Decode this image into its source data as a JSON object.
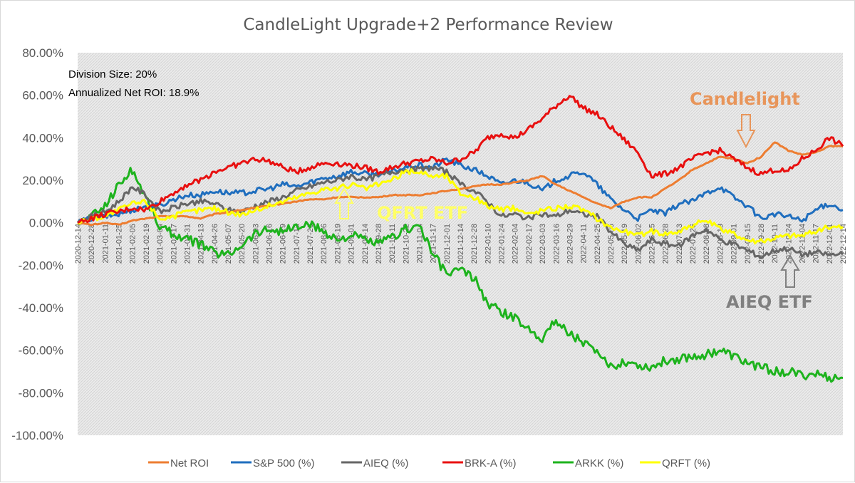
{
  "chart_data": {
    "type": "line",
    "title": "CandleLight Upgrade+2 Performance Review",
    "xlabel": "",
    "ylabel": "",
    "ylim": [
      -100,
      80
    ],
    "y_ticks": [
      "80.00%",
      "60.00%",
      "40.00%",
      "20.00%",
      "0.00%",
      "-20.00%",
      "-40.00%",
      "-60.00%",
      "-80.00%",
      "-100.00%"
    ],
    "x_tick_labels": [
      "2020-12-14",
      "2020-12-28",
      "2021-01-11",
      "2021-01-25",
      "2021-02-05",
      "2021-02-19",
      "2021-03-04",
      "2021-03-17",
      "2021-03-31",
      "2021-04-13",
      "2021-04-26",
      "2021-05-07",
      "2021-05-20",
      "2021-06-03",
      "2021-06-16",
      "2021-06-29",
      "2021-07-13",
      "2021-07-26",
      "2021-08-06",
      "2021-08-19",
      "2021-09-01",
      "2021-09-14",
      "2021-09-28",
      "2021-10-11",
      "2021-10-22",
      "2021-11-04",
      "2021-11-17",
      "2021-12-01",
      "2021-12-14",
      "2021-12-28",
      "2022-01-10",
      "2022-01-24",
      "2022-02-04",
      "2022-02-17",
      "2022-03-03",
      "2022-03-16",
      "2022-03-29",
      "2022-04-11",
      "2022-04-25",
      "2022-05-06",
      "2022-05-19",
      "2022-06-02",
      "2022-06-15",
      "2022-06-28",
      "2022-07-13",
      "2022-07-26",
      "2022-08-08",
      "2022-08-19",
      "2022-09-01",
      "2022-09-15",
      "2022-09-28",
      "2022-10-11",
      "2022-10-24",
      "2022-11-04",
      "2022-11-17",
      "2022-12-01",
      "2022-12-14"
    ],
    "grid": true,
    "legend_position": "bottom",
    "series": [
      {
        "name": "Net ROI",
        "color": "#ED7D31",
        "values": [
          0,
          -1,
          0,
          -1,
          1,
          2,
          3,
          3,
          3,
          2,
          4,
          5,
          6,
          7,
          8,
          9,
          10,
          11,
          11,
          12,
          12,
          12,
          12,
          13,
          13,
          13,
          14,
          15,
          16,
          17,
          18,
          18,
          19,
          20,
          22,
          18,
          15,
          12,
          9,
          7,
          10,
          12,
          12,
          16,
          20,
          25,
          28,
          31,
          30,
          28,
          31,
          38,
          34,
          32,
          33,
          36,
          36
        ]
      },
      {
        "name": "S&P 500 (%)",
        "color": "#1F6EBE",
        "values": [
          0,
          2,
          3,
          4,
          6,
          8,
          8,
          11,
          13,
          13,
          15,
          14,
          14,
          15,
          16,
          18,
          17,
          19,
          21,
          22,
          24,
          23,
          23,
          24,
          26,
          27,
          26,
          30,
          27,
          25,
          22,
          18,
          20,
          19,
          15,
          20,
          22,
          24,
          18,
          11,
          6,
          2,
          6,
          4,
          9,
          10,
          14,
          17,
          12,
          8,
          2,
          4,
          3,
          1,
          6,
          9,
          6
        ]
      },
      {
        "name": "AIEQ (%)",
        "color": "#666666",
        "values": [
          0,
          3,
          5,
          10,
          17,
          13,
          5,
          7,
          9,
          10,
          9,
          6,
          5,
          8,
          10,
          12,
          15,
          17,
          19,
          20,
          22,
          20,
          22,
          24,
          25,
          25,
          26,
          24,
          18,
          15,
          10,
          3,
          4,
          2,
          4,
          3,
          6,
          4,
          3,
          -4,
          -10,
          -13,
          -8,
          -10,
          -11,
          -6,
          -3,
          -8,
          -10,
          -13,
          -16,
          -13,
          -12,
          -15,
          -14,
          -15,
          -15
        ]
      },
      {
        "name": "BRK-A (%)",
        "color": "#E81010",
        "values": [
          0,
          2,
          4,
          5,
          7,
          6,
          10,
          14,
          18,
          20,
          24,
          26,
          28,
          30,
          29,
          26,
          24,
          26,
          28,
          28,
          27,
          26,
          24,
          26,
          28,
          29,
          30,
          28,
          30,
          33,
          40,
          42,
          40,
          44,
          49,
          55,
          60,
          54,
          51,
          45,
          39,
          33,
          22,
          23,
          26,
          30,
          33,
          34,
          30,
          26,
          23,
          25,
          24,
          30,
          34,
          40,
          36
        ]
      },
      {
        "name": "ARKK (%)",
        "color": "#1DB31D",
        "values": [
          0,
          3,
          8,
          18,
          25,
          12,
          -2,
          -5,
          -8,
          -10,
          -14,
          -15,
          -10,
          -5,
          -3,
          -4,
          -2,
          -1,
          -4,
          -8,
          -6,
          -8,
          -10,
          -7,
          -3,
          -1,
          -15,
          -24,
          -22,
          -26,
          -38,
          -42,
          -45,
          -50,
          -54,
          -46,
          -52,
          -56,
          -62,
          -68,
          -65,
          -67,
          -68,
          -65,
          -64,
          -63,
          -62,
          -60,
          -63,
          -66,
          -68,
          -70,
          -70,
          -72,
          -71,
          -73,
          -73
        ]
      },
      {
        "name": "QRFT (%)",
        "color": "#FFFF00",
        "values": [
          0,
          2,
          3,
          6,
          9,
          10,
          2,
          3,
          5,
          6,
          7,
          5,
          4,
          6,
          8,
          10,
          12,
          14,
          16,
          16,
          18,
          16,
          18,
          20,
          24,
          24,
          22,
          22,
          14,
          12,
          8,
          6,
          7,
          4,
          6,
          7,
          8,
          6,
          2,
          -2,
          -4,
          -6,
          -4,
          -5,
          -4,
          -1,
          1,
          -3,
          -5,
          -8,
          -9,
          -7,
          -6,
          -6,
          -4,
          -2,
          -2
        ]
      }
    ]
  },
  "annotations": {
    "division_size": "Division Size: 20%",
    "annualized_roi": "Annualized Net ROI: 18.9%",
    "candlelight_label": "Candlelight",
    "qfrt_label": "QFRT ETF",
    "aieq_label": "AIEQ ETF",
    "candlelight_color": "#E8955A",
    "qfrt_color": "#FFFF66",
    "aieq_color": "#808080"
  }
}
